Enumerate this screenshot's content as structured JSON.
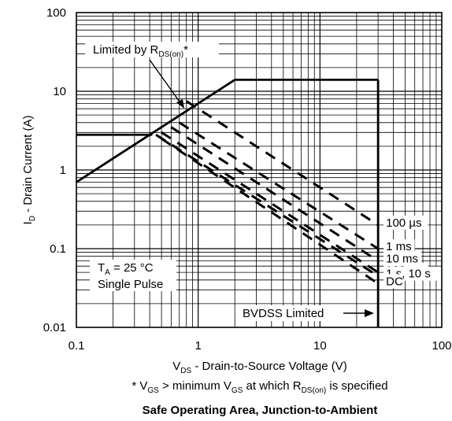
{
  "chart_data": {
    "type": "line",
    "title": "Safe Operating Area, Junction-to-Ambient",
    "xscale": "log",
    "yscale": "log",
    "xlim": [
      0.1,
      100
    ],
    "ylim": [
      0.01,
      100
    ],
    "grid": true,
    "x_ticks": [
      "0.1",
      "1",
      "10",
      "100"
    ],
    "y_ticks": [
      "100",
      "10",
      "1",
      "0.1",
      "0.01"
    ],
    "xlabel": {
      "v": "V",
      "sub": "DS",
      "rest": " - Drain-to-Source Voltage (V)"
    },
    "ylabel": {
      "i": "I",
      "sub": "D",
      "rest": " - Drain Current (A)"
    },
    "footnote": {
      "p1": "* V",
      "s1": "GS",
      "p2": " > minimum V",
      "s2": "GS",
      "p3": " at which R",
      "s3": "DS(on)",
      "p4": " is specified"
    },
    "rds_label": {
      "p1": "Limited by R",
      "s1": "DS(on)",
      "p2": "*"
    },
    "conditions": {
      "t": "T",
      "ts": "A",
      "trest": " = 25 °C",
      "pulse": "Single Pulse"
    },
    "bvdss_label": "BVDSS Limited",
    "series": [
      {
        "name": "100 µs",
        "style": "dashed",
        "x": [
          0.8,
          30
        ],
        "y": [
          7.5,
          0.2
        ]
      },
      {
        "name": "1 ms",
        "style": "dashed",
        "x": [
          0.7,
          30
        ],
        "y": [
          4.0,
          0.1
        ]
      },
      {
        "name": "10 ms",
        "style": "dashed",
        "x": [
          0.6,
          30
        ],
        "y": [
          3.5,
          0.07
        ]
      },
      {
        "name": "100 ms",
        "style": "dashed",
        "x": [
          0.5,
          30
        ],
        "y": [
          3.0,
          0.05
        ]
      },
      {
        "name": "1 s, 10 s",
        "style": "dashed",
        "x": [
          0.45,
          30
        ],
        "y": [
          2.8,
          0.045
        ]
      },
      {
        "name": "DC",
        "style": "dashed",
        "x": [
          0.5,
          30
        ],
        "y": [
          2.5,
          0.036
        ]
      }
    ],
    "limit_lines": [
      {
        "label": "RDS(on) limit",
        "x": [
          0.1,
          2.0
        ],
        "y": [
          0.7,
          14.0
        ]
      },
      {
        "label": "current limit",
        "x": [
          2.0,
          30
        ],
        "y": [
          14.0,
          14.0
        ]
      },
      {
        "label": "BVDSS limit",
        "x": [
          30,
          30
        ],
        "y": [
          14.0,
          0.01
        ]
      }
    ],
    "colors": {
      "lines": "#000000",
      "grid": "#000000",
      "background": "#ffffff"
    }
  }
}
